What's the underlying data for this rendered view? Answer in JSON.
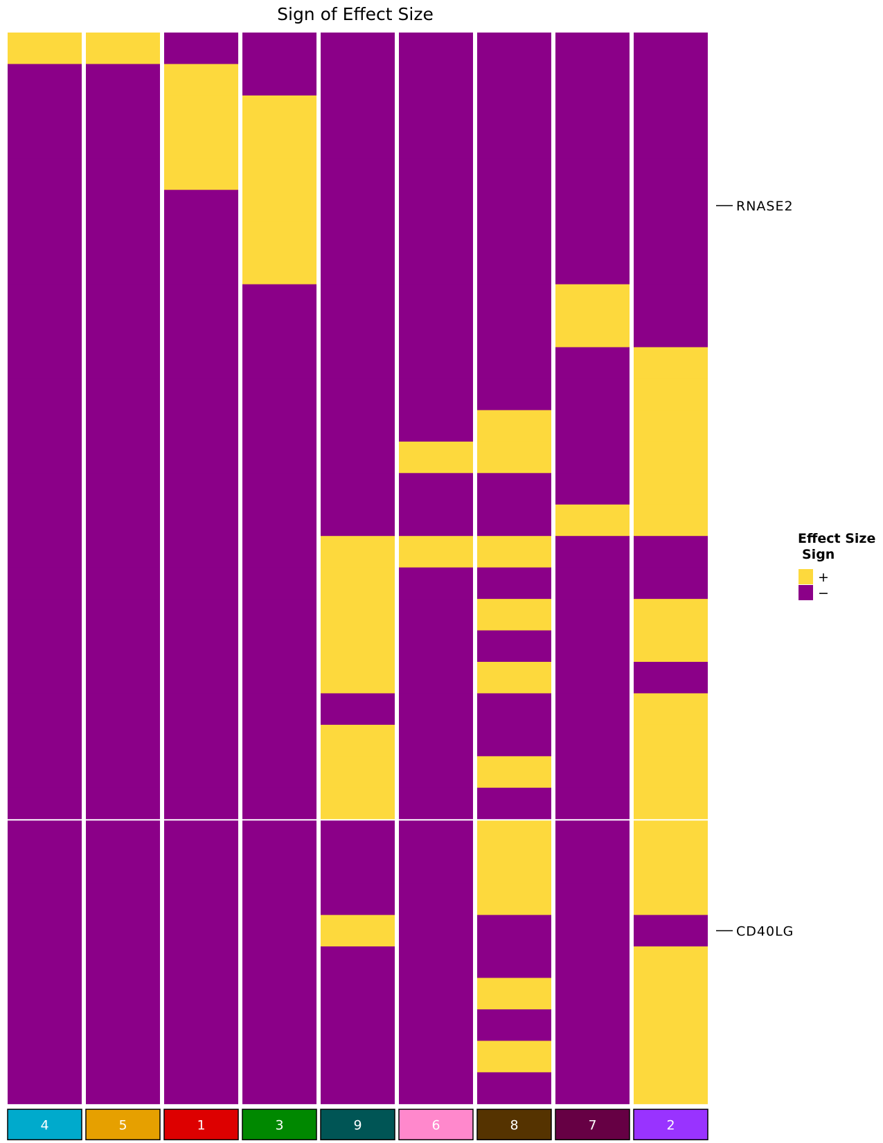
{
  "chart_data": {
    "type": "heatmap",
    "title": "Sign of Effect Size",
    "n_rows": 34,
    "row_split_after": 25,
    "gene_labels": [
      {
        "name": "RNASE2",
        "row": 5
      },
      {
        "name": "CD40LG",
        "row": 28
      }
    ],
    "colors": {
      "positive": "#FDD93D",
      "negative": "#8B0088"
    },
    "legend": {
      "title_line1": "Effect Size",
      "title_line2": "Sign",
      "items": [
        {
          "label": "+",
          "color": "#FDD93D"
        },
        {
          "label": "−",
          "color": "#8B0088"
        }
      ],
      "position": "right"
    },
    "clusters": [
      {
        "label": "4",
        "color": "#00AACC",
        "text_color": "#ffffff",
        "positive_rows": [
          0
        ]
      },
      {
        "label": "5",
        "color": "#E6A000",
        "text_color": "#ffffff",
        "positive_rows": [
          0
        ]
      },
      {
        "label": "1",
        "color": "#DD0000",
        "text_color": "#ffffff",
        "positive_rows": [
          1,
          2,
          3,
          4
        ]
      },
      {
        "label": "3",
        "color": "#008800",
        "text_color": "#ffffff",
        "positive_rows": [
          2,
          3,
          4,
          5,
          6,
          7
        ]
      },
      {
        "label": "9",
        "color": "#005555",
        "text_color": "#ffffff",
        "positive_rows": [
          16,
          17,
          18,
          19,
          20,
          22,
          23,
          24,
          28
        ]
      },
      {
        "label": "6",
        "color": "#FF88CC",
        "text_color": "#ffffff",
        "positive_rows": [
          13,
          16
        ]
      },
      {
        "label": "8",
        "color": "#553300",
        "text_color": "#ffffff",
        "positive_rows": [
          12,
          13,
          16,
          18,
          20,
          23,
          25,
          26,
          27,
          30,
          32
        ]
      },
      {
        "label": "7",
        "color": "#660044",
        "text_color": "#ffffff",
        "positive_rows": [
          8,
          9,
          15
        ]
      },
      {
        "label": "2",
        "color": "#9933FF",
        "text_color": "#ffffff",
        "positive_rows": [
          10,
          11,
          12,
          13,
          14,
          15,
          18,
          19,
          21,
          22,
          23,
          24,
          25,
          26,
          27,
          29,
          30,
          31,
          32,
          33
        ]
      }
    ]
  }
}
